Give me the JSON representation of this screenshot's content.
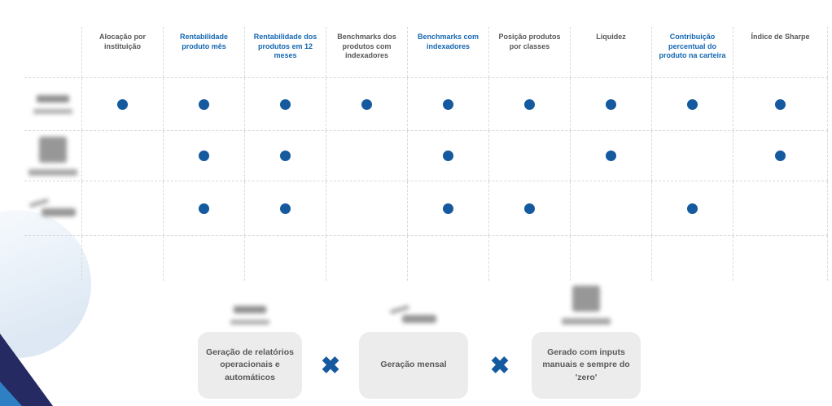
{
  "colors": {
    "accent_blue": "#15599e",
    "header_highlight_blue": "#1467b2",
    "header_gray": "#58585a",
    "grid_dash_gray": "#d9d9d9",
    "card_background": "#ececec",
    "card_text_gray": "#58595b",
    "corner_navy": "#262a62",
    "corner_light_blue": "#2e80c4"
  },
  "table": {
    "columns": [
      {
        "label": "Alocação por instituição",
        "highlight": false
      },
      {
        "label": "Rentabilidade produto mês",
        "highlight": true
      },
      {
        "label": "Rentabilidade dos produtos em 12 meses",
        "highlight": true
      },
      {
        "label": "Benchmarks dos produtos com indexadores",
        "highlight": false
      },
      {
        "label": "Benchmarks com indexadores",
        "highlight": true
      },
      {
        "label": "Posição produtos por classes",
        "highlight": false
      },
      {
        "label": "Liquidez",
        "highlight": false
      },
      {
        "label": "Contribuição percentual do produto na carteira",
        "highlight": true
      },
      {
        "label": "Índice de Sharpe",
        "highlight": false
      }
    ],
    "rows": [
      {
        "logo": "blurred-wordmark-logo",
        "logo_class": "logo-a",
        "features": [
          1,
          1,
          1,
          1,
          1,
          1,
          1,
          1,
          1
        ]
      },
      {
        "logo": "blurred-square-mark-logo",
        "logo_class": "logo-b",
        "features": [
          0,
          1,
          1,
          0,
          1,
          0,
          1,
          0,
          1
        ]
      },
      {
        "logo": "blurred-swoosh-logo",
        "logo_class": "logo-c",
        "features": [
          0,
          1,
          1,
          0,
          1,
          1,
          0,
          1,
          0
        ]
      }
    ]
  },
  "comparison": {
    "separator": "✖",
    "items": [
      {
        "logo": "blurred-wordmark-logo",
        "logo_class": "logo-a",
        "text": "Geração de relatórios operacionais e automáticos"
      },
      {
        "logo": "blurred-swoosh-logo",
        "logo_class": "logo-c",
        "text": "Geração mensal"
      },
      {
        "logo": "blurred-square-mark-logo",
        "logo_class": "logo-b",
        "text": "Gerado com inputs manuais e sempre do 'zero'"
      }
    ]
  }
}
